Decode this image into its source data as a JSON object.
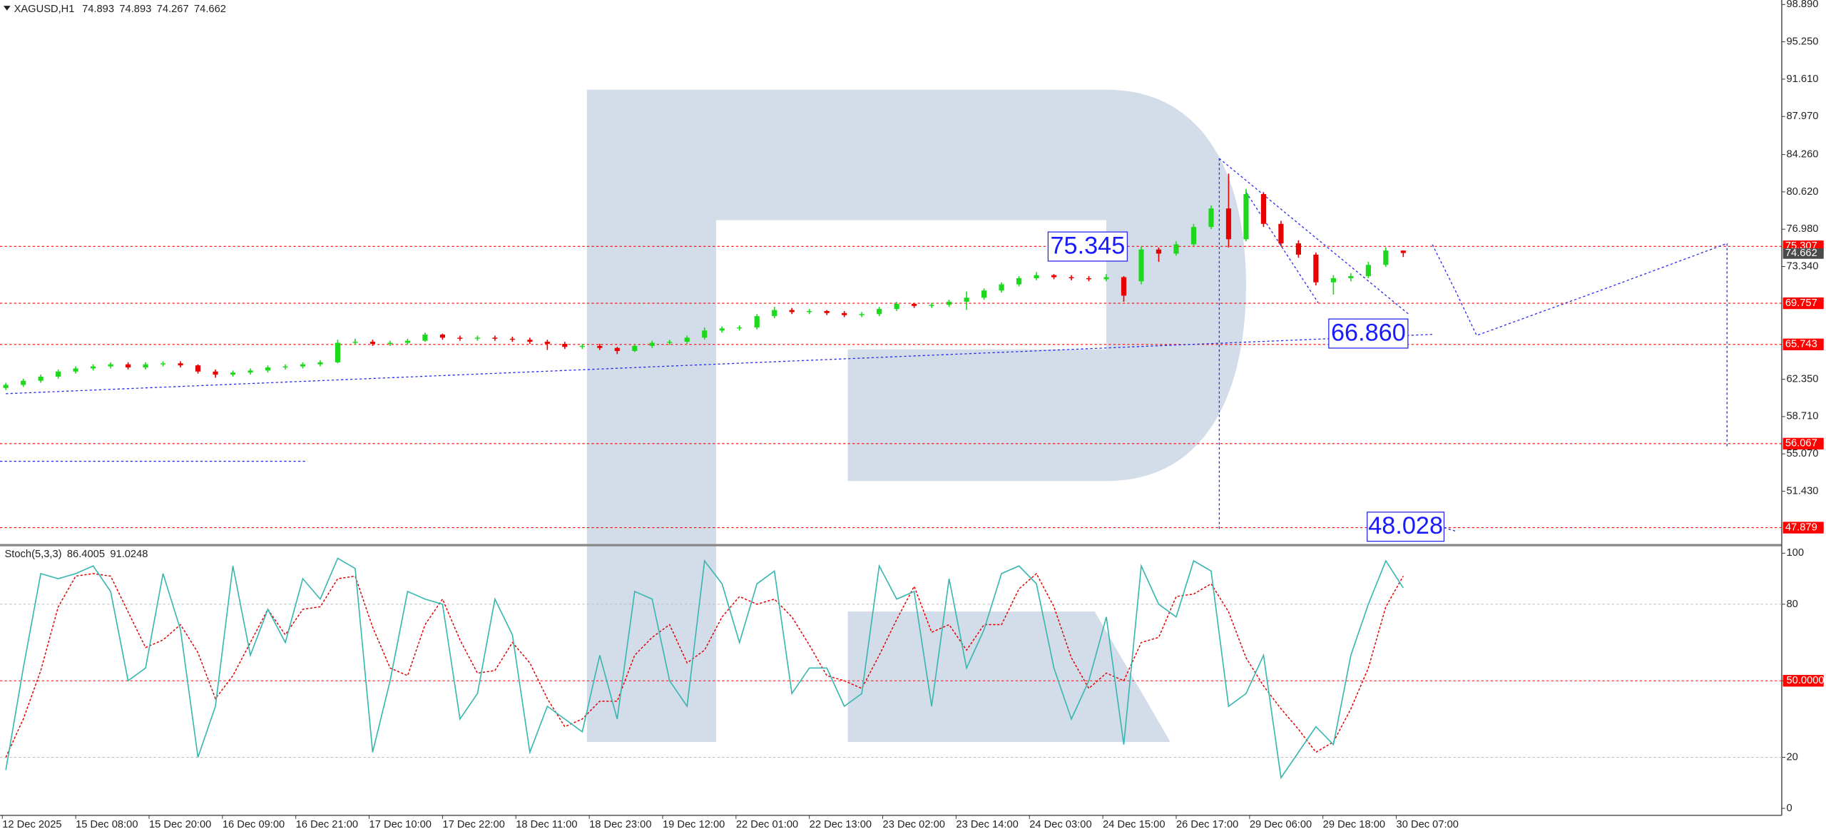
{
  "chart_data": {
    "type": "candlestick",
    "symbol": "XAGUSD,H1",
    "indicator": "Stoch(5,3,3)",
    "bull_color": "#1ed81e",
    "bear_color": "#e60000",
    "stoch_main_color": "#38b6b0",
    "stoch_signal_color": "#e00000",
    "level_color": "#ff0000",
    "ylim": [
      46.4,
      99.1
    ],
    "yticks": [
      {
        "value": 98.89,
        "label": "98.890"
      },
      {
        "value": 95.25,
        "label": "95.250"
      },
      {
        "value": 91.61,
        "label": "91.610"
      },
      {
        "value": 87.97,
        "label": "87.970"
      },
      {
        "value": 84.26,
        "label": "84.260"
      },
      {
        "value": 80.62,
        "label": "80.620"
      },
      {
        "value": 76.98,
        "label": "76.980"
      },
      {
        "value": 73.34,
        "label": "73.340"
      },
      {
        "value": 62.35,
        "label": "62.350"
      },
      {
        "value": 58.71,
        "label": "58.710"
      },
      {
        "value": 55.07,
        "label": "55.070"
      },
      {
        "value": 51.43,
        "label": "51.430"
      }
    ],
    "levels": [
      {
        "value": 75.307,
        "label": "75.307"
      },
      {
        "value": 69.757,
        "label": "69.757"
      },
      {
        "value": 65.743,
        "label": "65.743"
      },
      {
        "value": 56.067,
        "label": "56.067"
      },
      {
        "value": 47.879,
        "label": "47.879"
      }
    ],
    "current_price": 74.662,
    "annotations": [
      75.345,
      {
        "value": 66.86,
        "label": "66.860"
      },
      48.028
    ],
    "time_labels": [
      "12 Dec 2025",
      "15 Dec 08:00",
      "15 Dec 20:00",
      "16 Dec 09:00",
      "16 Dec 21:00",
      "17 Dec 10:00",
      "17 Dec 22:00",
      "18 Dec 11:00",
      "18 Dec 23:00",
      "19 Dec 12:00",
      "22 Dec 01:00",
      "22 Dec 13:00",
      "23 Dec 02:00",
      "23 Dec 14:00",
      "24 Dec 03:00",
      "24 Dec 15:00",
      "26 Dec 17:00",
      "29 Dec 06:00",
      "29 Dec 18:00",
      "30 Dec 07:00"
    ],
    "candles": [
      [
        61.5,
        62.0,
        61.3,
        61.8
      ],
      [
        61.8,
        62.4,
        61.6,
        62.2
      ],
      [
        62.2,
        62.8,
        62.0,
        62.6
      ],
      [
        62.6,
        63.3,
        62.4,
        63.1
      ],
      [
        63.1,
        63.6,
        62.9,
        63.4
      ],
      [
        63.4,
        63.8,
        63.2,
        63.6
      ],
      [
        63.6,
        64.0,
        63.4,
        63.8
      ],
      [
        63.8,
        64.0,
        63.3,
        63.5
      ],
      [
        63.5,
        64.0,
        63.3,
        63.8
      ],
      [
        63.8,
        64.1,
        63.6,
        63.9
      ],
      [
        63.9,
        64.1,
        63.5,
        63.7
      ],
      [
        63.7,
        63.8,
        62.9,
        63.1
      ],
      [
        63.1,
        63.3,
        62.5,
        62.8
      ],
      [
        62.8,
        63.2,
        62.6,
        63.0
      ],
      [
        63.0,
        63.4,
        62.8,
        63.2
      ],
      [
        63.2,
        63.7,
        63.0,
        63.5
      ],
      [
        63.5,
        63.8,
        63.3,
        63.6
      ],
      [
        63.6,
        64.0,
        63.4,
        63.8
      ],
      [
        63.8,
        64.2,
        63.6,
        64.0
      ],
      [
        64.0,
        66.2,
        63.9,
        65.9
      ],
      [
        65.9,
        66.3,
        65.7,
        66.0
      ],
      [
        66.0,
        66.2,
        65.6,
        65.8
      ],
      [
        65.8,
        66.1,
        65.6,
        65.9
      ],
      [
        65.9,
        66.3,
        65.7,
        66.1
      ],
      [
        66.1,
        66.9,
        66.0,
        66.7
      ],
      [
        66.7,
        66.8,
        66.2,
        66.4
      ],
      [
        66.4,
        66.6,
        66.1,
        66.3
      ],
      [
        66.3,
        66.6,
        66.1,
        66.4
      ],
      [
        66.4,
        66.6,
        66.1,
        66.3
      ],
      [
        66.3,
        66.5,
        66.0,
        66.2
      ],
      [
        66.2,
        66.4,
        65.8,
        66.0
      ],
      [
        66.0,
        66.2,
        65.2,
        65.8
      ],
      [
        65.8,
        66.0,
        65.3,
        65.5
      ],
      [
        65.5,
        65.8,
        65.3,
        65.6
      ],
      [
        65.6,
        65.8,
        65.2,
        65.4
      ],
      [
        65.4,
        65.5,
        64.8,
        65.1
      ],
      [
        65.1,
        65.8,
        65.0,
        65.6
      ],
      [
        65.6,
        66.1,
        65.4,
        65.9
      ],
      [
        65.9,
        66.2,
        65.7,
        66.0
      ],
      [
        66.0,
        66.6,
        65.8,
        66.4
      ],
      [
        66.4,
        67.4,
        66.2,
        67.1
      ],
      [
        67.1,
        67.5,
        66.9,
        67.3
      ],
      [
        67.3,
        67.6,
        67.1,
        67.4
      ],
      [
        67.4,
        68.7,
        67.2,
        68.5
      ],
      [
        68.5,
        69.4,
        68.3,
        69.1
      ],
      [
        69.1,
        69.3,
        68.7,
        68.9
      ],
      [
        68.9,
        69.2,
        68.7,
        69.0
      ],
      [
        69.0,
        69.1,
        68.6,
        68.8
      ],
      [
        68.8,
        69.0,
        68.4,
        68.6
      ],
      [
        68.6,
        68.9,
        68.4,
        68.7
      ],
      [
        68.7,
        69.4,
        68.5,
        69.2
      ],
      [
        69.2,
        69.9,
        69.0,
        69.7
      ],
      [
        69.7,
        69.8,
        69.3,
        69.5
      ],
      [
        69.5,
        69.8,
        69.3,
        69.6
      ],
      [
        69.6,
        70.1,
        69.4,
        69.9
      ],
      [
        69.9,
        70.9,
        69.1,
        70.3
      ],
      [
        70.3,
        71.2,
        70.1,
        71.0
      ],
      [
        71.0,
        71.8,
        70.8,
        71.6
      ],
      [
        71.6,
        72.4,
        71.4,
        72.2
      ],
      [
        72.2,
        72.8,
        72.0,
        72.5
      ],
      [
        72.5,
        72.6,
        72.1,
        72.3
      ],
      [
        72.3,
        72.5,
        72.0,
        72.2
      ],
      [
        72.2,
        72.4,
        71.9,
        72.1
      ],
      [
        72.1,
        72.6,
        71.9,
        72.3
      ],
      [
        72.3,
        72.4,
        69.9,
        70.5
      ],
      [
        71.9,
        75.3,
        71.6,
        75.0
      ],
      [
        75.0,
        75.2,
        73.8,
        74.6
      ],
      [
        74.6,
        75.8,
        74.4,
        75.5
      ],
      [
        75.5,
        77.5,
        75.3,
        77.2
      ],
      [
        77.2,
        79.3,
        77.0,
        79.0
      ],
      [
        79.0,
        82.4,
        75.2,
        76.0
      ],
      [
        76.0,
        80.9,
        75.8,
        80.4
      ],
      [
        80.4,
        80.6,
        77.2,
        77.5
      ],
      [
        77.5,
        77.8,
        75.3,
        75.6
      ],
      [
        75.6,
        75.9,
        74.2,
        74.5
      ],
      [
        74.5,
        74.7,
        71.5,
        71.8
      ],
      [
        71.8,
        72.5,
        70.6,
        72.2
      ],
      [
        72.2,
        72.7,
        71.9,
        72.4
      ],
      [
        72.4,
        73.8,
        72.2,
        73.5
      ],
      [
        73.5,
        75.2,
        73.3,
        74.9
      ],
      [
        74.893,
        74.893,
        74.267,
        74.662
      ]
    ],
    "stochastic": {
      "ylim": [
        -3.2,
        102.7
      ],
      "yticks": [
        100,
        80,
        {
          "value": 50,
          "label": "50.0000"
        },
        20,
        0
      ],
      "main": [
        15,
        55,
        92,
        90,
        92,
        95,
        85,
        50,
        55,
        92,
        70,
        20,
        40,
        95,
        60,
        78,
        65,
        90,
        82,
        98,
        94,
        22,
        50,
        85,
        82,
        80,
        35,
        45,
        82,
        68,
        22,
        40,
        35,
        30,
        60,
        35,
        85,
        82,
        50,
        40,
        97,
        88,
        65,
        88,
        93,
        45,
        55,
        55,
        40,
        45,
        95,
        82,
        85,
        40,
        90,
        55,
        70,
        92,
        95,
        88,
        55,
        35,
        50,
        75,
        25,
        95,
        80,
        75,
        97,
        93,
        40,
        45,
        60,
        12,
        22,
        32,
        25,
        60,
        80,
        97,
        86.4005
      ],
      "signal": [
        20,
        35,
        54,
        79,
        91,
        92,
        91,
        77,
        63,
        66,
        72,
        61,
        43,
        52,
        65,
        78,
        68,
        78,
        79,
        90,
        91,
        71,
        55,
        52,
        72,
        82,
        66,
        53,
        54,
        65,
        57,
        43,
        32,
        35,
        42,
        42,
        60,
        67,
        72,
        57,
        62,
        75,
        83,
        80,
        82,
        75,
        64,
        52,
        50,
        47,
        60,
        74,
        87,
        69,
        72,
        62,
        72,
        72,
        86,
        92,
        79,
        59,
        47,
        53,
        50,
        65,
        67,
        83,
        84,
        88,
        77,
        59,
        48,
        39,
        31,
        22,
        26,
        39,
        55,
        79,
        91.0248
      ]
    }
  }
}
